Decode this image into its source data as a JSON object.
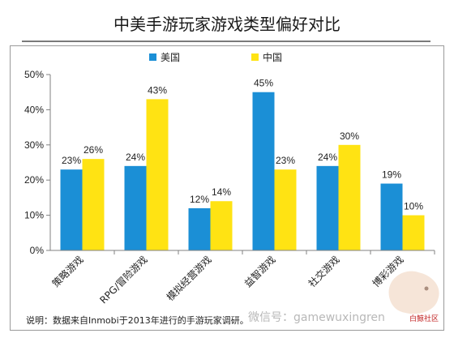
{
  "chart_data": {
    "type": "bar",
    "title": "中美手游玩家游戏类型偏好对比",
    "categories": [
      "策略游戏",
      "RPG/冒险游戏",
      "模拟经营游戏",
      "益智游戏",
      "社交游戏",
      "博彩游戏"
    ],
    "series": [
      {
        "name": "美国",
        "color": "#1b8fd6",
        "values": [
          23,
          24,
          12,
          45,
          24,
          19
        ]
      },
      {
        "name": "中国",
        "color": "#ffe313",
        "values": [
          26,
          43,
          14,
          23,
          30,
          10
        ]
      }
    ],
    "data_labels": [
      [
        "23%",
        "24%",
        "12%",
        "45%",
        "24%",
        "19%"
      ],
      [
        "26%",
        "43%",
        "14%",
        "23%",
        "30%",
        "10%"
      ]
    ],
    "yticks": [
      0,
      10,
      20,
      30,
      40,
      50
    ],
    "ytick_labels": [
      "0%",
      "10%",
      "20%",
      "30%",
      "40%",
      "50%"
    ],
    "ylim": [
      0,
      50
    ],
    "xlabel": "",
    "ylabel": "",
    "grid": false,
    "legend_position": "top"
  },
  "note": "说明：数据来自Inmobi于2013年进行的手游玩家调研。",
  "watermark": {
    "wechat": "微信号：gamewuxingren",
    "site": "白鲸社区"
  }
}
